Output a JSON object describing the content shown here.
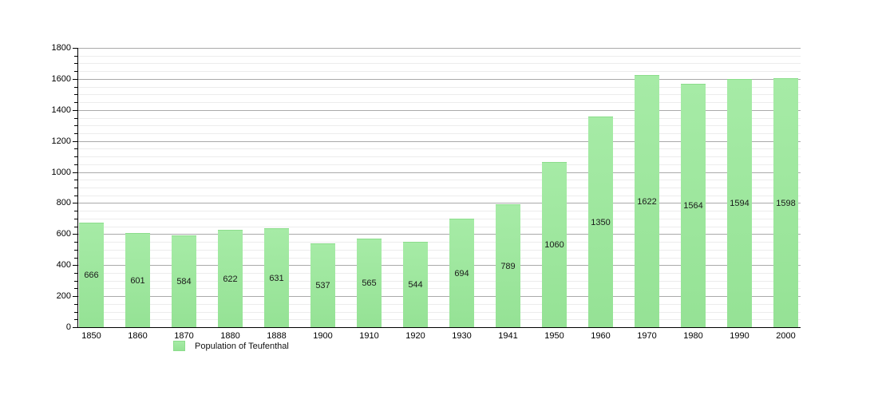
{
  "chart_data": {
    "type": "bar",
    "title": "",
    "xlabel": "",
    "ylabel": "",
    "categories": [
      "1850",
      "1860",
      "1870",
      "1880",
      "1888",
      "1900",
      "1910",
      "1920",
      "1930",
      "1941",
      "1950",
      "1960",
      "1970",
      "1980",
      "1990",
      "2000"
    ],
    "values": [
      666,
      601,
      584,
      622,
      631,
      537,
      565,
      544,
      694,
      789,
      1060,
      1350,
      1622,
      1564,
      1594,
      1598
    ],
    "ylim": [
      0,
      1800
    ],
    "y_major_step": 200,
    "y_minor_step": 50,
    "y_tick_labels": [
      "0",
      "200",
      "400",
      "600",
      "800",
      "1000",
      "1200",
      "1400",
      "1600",
      "1800"
    ],
    "grid": true,
    "legend": {
      "label": "Population of Teufenthal",
      "position": "bottom-left"
    },
    "colors": {
      "background": "#ffffff",
      "bar_fill": "#95e295",
      "bar_fill_light": "#a6eba6",
      "bar_edge": "#8cdd8c",
      "major_grid": "#aaaaaa",
      "minor_grid": "#ececec",
      "axis": "#000000",
      "tick_text": "#000000",
      "bar_value_text": "#1a1a1a",
      "legend_text": "#111111"
    }
  }
}
